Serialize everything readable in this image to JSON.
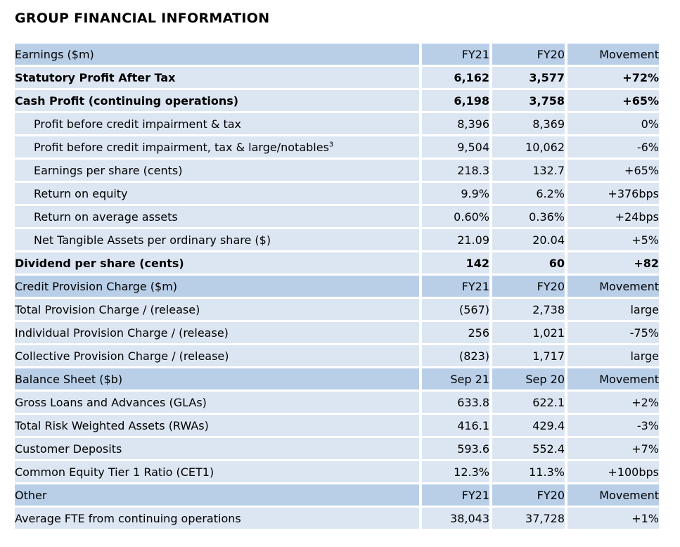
{
  "page": {
    "title": "GROUP FINANCIAL INFORMATION"
  },
  "colors": {
    "header_bg": "#B9CFE8",
    "row_bg": "#DCE6F2",
    "text": "#000000",
    "grid": "#FFFFFF"
  },
  "table": {
    "sections": [
      {
        "header": {
          "label": "Earnings ($m)",
          "col1": "FY21",
          "col2": "FY20",
          "col3": "Movement"
        },
        "rows": [
          {
            "label": "Statutory Profit After Tax",
            "style": "bold",
            "v1": "6,162",
            "v2": "3,577",
            "mv": "+72%"
          },
          {
            "label": "Cash Profit (continuing operations)",
            "style": "bold",
            "v1": "6,198",
            "v2": "3,758",
            "mv": "+65%"
          },
          {
            "label": "Profit before credit impairment & tax",
            "style": "indent",
            "v1": "8,396",
            "v2": "8,369",
            "mv": "0%"
          },
          {
            "label": "Profit before credit impairment, tax & large/notables",
            "sup": "3",
            "style": "indent",
            "v1": "9,504",
            "v2": "10,062",
            "mv": "-6%"
          },
          {
            "label": "Earnings per share (cents)",
            "style": "indent",
            "v1": "218.3",
            "v2": "132.7",
            "mv": "+65%"
          },
          {
            "label": "Return on equity",
            "style": "indent",
            "v1": "9.9%",
            "v2": "6.2%",
            "mv": "+376bps"
          },
          {
            "label": "Return on average assets",
            "style": "indent",
            "v1": "0.60%",
            "v2": "0.36%",
            "mv": "+24bps"
          },
          {
            "label": "Net Tangible Assets per ordinary share ($)",
            "style": "indent",
            "v1": "21.09",
            "v2": "20.04",
            "mv": "+5%"
          },
          {
            "label": "Dividend per share (cents)",
            "style": "bold",
            "v1": "142",
            "v2": "60",
            "mv": "+82"
          }
        ]
      },
      {
        "header": {
          "label": "Credit Provision Charge ($m)",
          "col1": "FY21",
          "col2": "FY20",
          "col3": "Movement"
        },
        "rows": [
          {
            "label": "Total Provision Charge / (release)",
            "style": "normal",
            "v1": "(567)",
            "v2": "2,738",
            "mv": "large"
          },
          {
            "label": "Individual Provision Charge / (release)",
            "style": "normal",
            "v1": "256",
            "v2": "1,021",
            "mv": "-75%"
          },
          {
            "label": "Collective Provision Charge / (release)",
            "style": "normal",
            "v1": "(823)",
            "v2": "1,717",
            "mv": "large"
          }
        ]
      },
      {
        "header": {
          "label": "Balance Sheet ($b)",
          "col1": "Sep 21",
          "col2": "Sep 20",
          "col3": "Movement"
        },
        "rows": [
          {
            "label": "Gross Loans and Advances (GLAs)",
            "style": "normal",
            "v1": "633.8",
            "v2": "622.1",
            "mv": "+2%"
          },
          {
            "label": "Total Risk Weighted Assets (RWAs)",
            "style": "normal",
            "v1": "416.1",
            "v2": "429.4",
            "mv": "-3%"
          },
          {
            "label": "Customer Deposits",
            "style": "normal",
            "v1": "593.6",
            "v2": "552.4",
            "mv": "+7%"
          },
          {
            "label": "Common Equity Tier 1 Ratio (CET1)",
            "style": "normal",
            "v1": "12.3%",
            "v2": "11.3%",
            "mv": "+100bps"
          }
        ]
      },
      {
        "header": {
          "label": "Other",
          "col1": "FY21",
          "col2": "FY20",
          "col3": "Movement"
        },
        "rows": [
          {
            "label": "Average FTE from continuing operations",
            "style": "normal",
            "v1": "38,043",
            "v2": "37,728",
            "mv": "+1%"
          }
        ]
      }
    ]
  }
}
